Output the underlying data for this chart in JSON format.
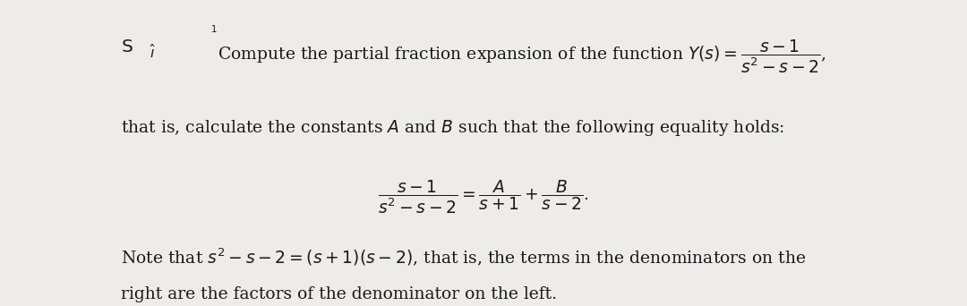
{
  "bg_color": "#eeece9",
  "text_color": "#1a1a1a",
  "fig_width": 10.8,
  "fig_height": 3.42,
  "dpi": 100,
  "fs": 13.5
}
